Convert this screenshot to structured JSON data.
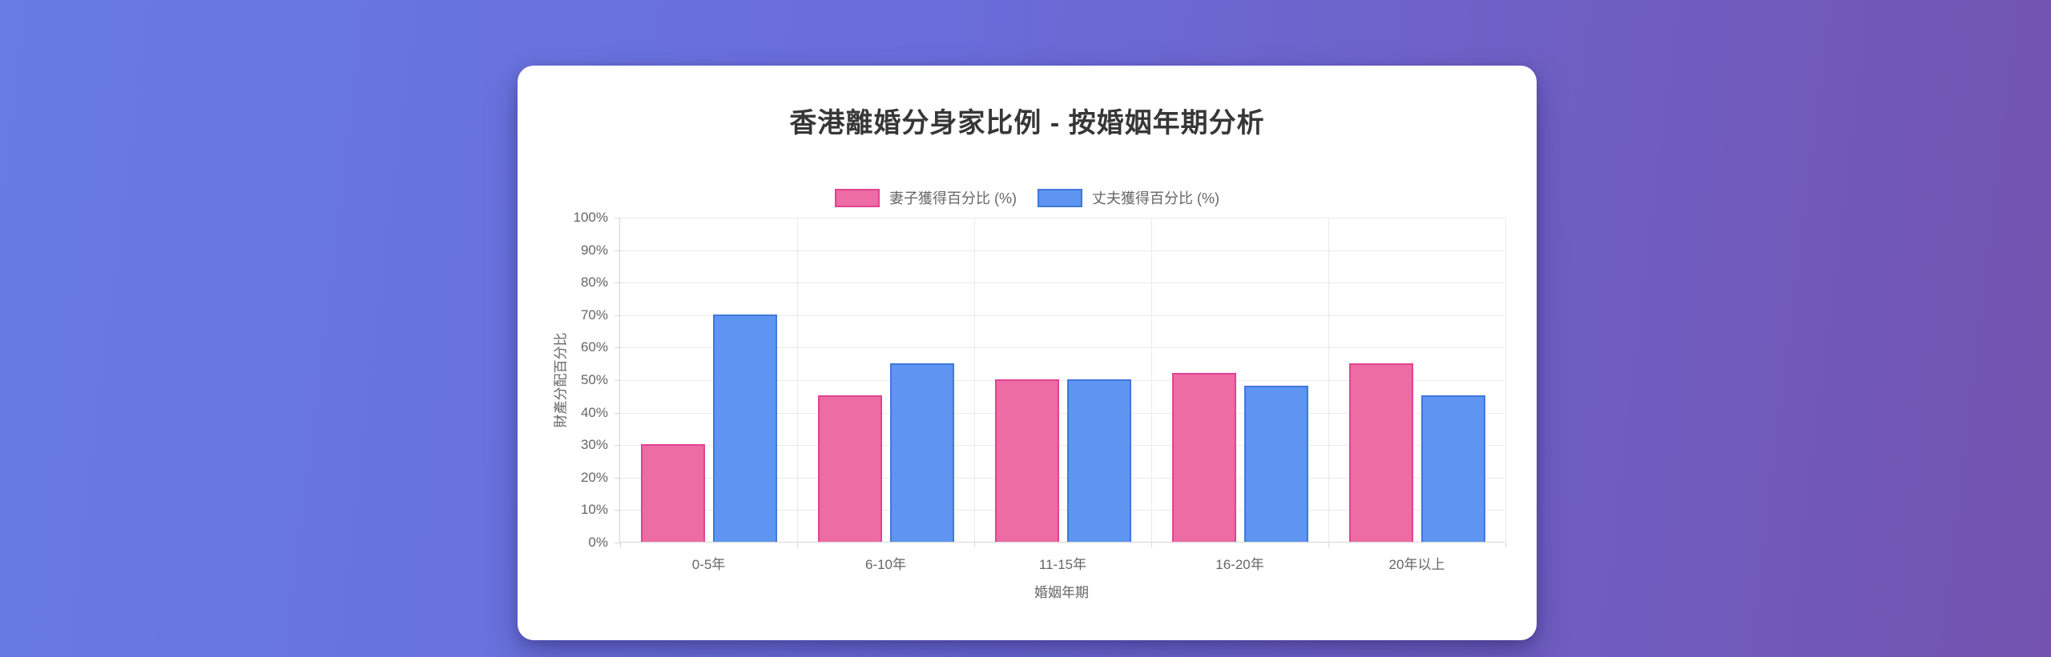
{
  "page": {
    "background_gradient": [
      "#677be3",
      "#6a6cd9",
      "#7353af"
    ]
  },
  "card": {
    "background": "#ffffff"
  },
  "chart_data": {
    "type": "bar",
    "title": "香港離婚分身家比例 - 按婚姻年期分析",
    "xlabel": "婚姻年期",
    "ylabel": "財產分配百分比",
    "categories": [
      "0-5年",
      "6-10年",
      "11-15年",
      "16-20年",
      "20年以上"
    ],
    "series": [
      {
        "name": "妻子獲得百分比 (%)",
        "values": [
          30,
          45,
          50,
          52,
          55
        ],
        "fill_color": "#ed6ca3",
        "border_color": "#e04393"
      },
      {
        "name": "丈夫獲得百分比 (%)",
        "values": [
          70,
          55,
          50,
          48,
          45
        ],
        "fill_color": "#5d95f0",
        "border_color": "#4178dd"
      }
    ],
    "ylim": [
      0,
      100
    ],
    "ytick_step": 10,
    "ytick_suffix": "%",
    "grid": true,
    "legend_position": "top",
    "colors": {
      "title_text": "#373737",
      "label_text": "#666666",
      "gridline": "#eaeaea",
      "axis_border": "#d6d6d6"
    }
  }
}
